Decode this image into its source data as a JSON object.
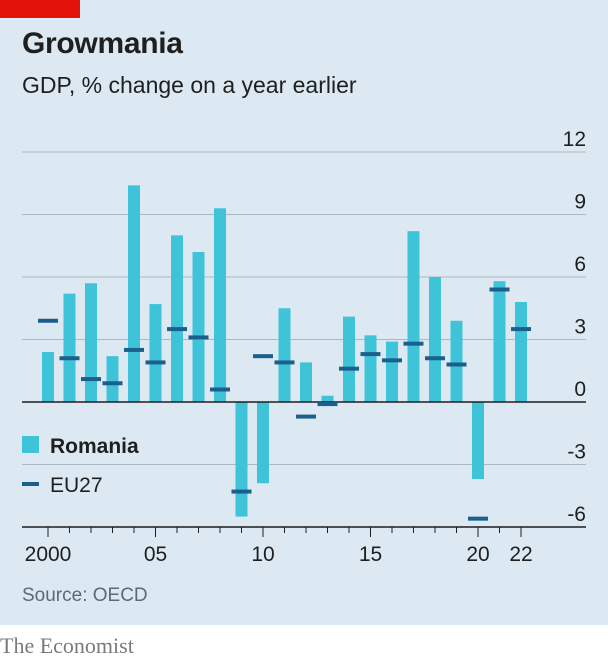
{
  "title": "Growmania",
  "subtitle": "GDP, % change on a year earlier",
  "source": "Source: OECD",
  "brand": "The Economist",
  "colors": {
    "background": "#dce9f2",
    "accent_red": "#e3120b",
    "romania": "#3ec3d8",
    "eu27": "#1b5f8c",
    "grid": "#a9b8c3",
    "axis": "#1f1f1f"
  },
  "chart_data": {
    "type": "bar",
    "title": "Growmania",
    "subtitle": "GDP, % change on a year earlier",
    "x": [
      2000,
      2001,
      2002,
      2003,
      2004,
      2005,
      2006,
      2007,
      2008,
      2009,
      2010,
      2011,
      2012,
      2013,
      2014,
      2015,
      2016,
      2017,
      2018,
      2019,
      2020,
      2021,
      2022
    ],
    "x_tick_labels": [
      {
        "x": 2000,
        "label": "2000"
      },
      {
        "x": 2005,
        "label": "05"
      },
      {
        "x": 2010,
        "label": "10"
      },
      {
        "x": 2015,
        "label": "15"
      },
      {
        "x": 2020,
        "label": "20"
      },
      {
        "x": 2022,
        "label": "22"
      }
    ],
    "y_ticks": [
      12,
      9,
      6,
      3,
      0,
      -3,
      -6
    ],
    "y_tick_labels": [
      "12",
      "9",
      "6",
      "3",
      "0",
      "-3",
      "-6"
    ],
    "ylim": [
      -6,
      12
    ],
    "y_axis_side": "right",
    "grid": true,
    "legend_position": "bottom-left",
    "series": [
      {
        "name": "Romania",
        "mark": "bar",
        "values": [
          2.4,
          5.2,
          5.7,
          2.2,
          10.4,
          4.7,
          8.0,
          7.2,
          9.3,
          -5.5,
          -3.9,
          4.5,
          1.9,
          0.3,
          4.1,
          3.2,
          2.9,
          8.2,
          6.0,
          3.9,
          -3.7,
          5.8,
          4.8
        ]
      },
      {
        "name": "EU27",
        "mark": "dash",
        "values": [
          3.9,
          2.1,
          1.1,
          0.9,
          2.5,
          1.9,
          3.5,
          3.1,
          0.6,
          -4.3,
          2.2,
          1.9,
          -0.7,
          -0.1,
          1.6,
          2.3,
          2.0,
          2.8,
          2.1,
          1.8,
          -5.6,
          5.4,
          3.5
        ]
      }
    ]
  }
}
